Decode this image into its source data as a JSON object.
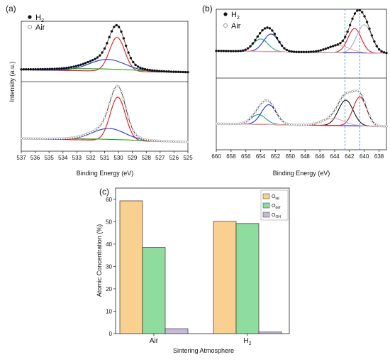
{
  "panels": [
    {
      "label": "(a)",
      "legend": [
        "H",
        "Air"
      ],
      "legend_sub": [
        "2",
        ""
      ]
    },
    {
      "label": "(b)",
      "legend": [
        "H",
        "Air"
      ],
      "legend_sub": [
        "2",
        ""
      ]
    }
  ],
  "chart_data": [
    {
      "id": "a",
      "type": "line",
      "xlabel": "Binding Energy (eV)",
      "ylabel": "Intensity (a.u.)",
      "xlim": [
        537,
        525
      ],
      "xticks": [
        "537",
        "536",
        "535",
        "534",
        "533",
        "532",
        "531",
        "530",
        "529",
        "528",
        "527",
        "526",
        "525"
      ],
      "subplots": [
        {
          "series_label": "H2",
          "peaks": [
            {
              "component": "red",
              "center": 530.1,
              "height": 0.78,
              "width": 0.55
            },
            {
              "component": "blue",
              "center": 530.8,
              "height": 0.27,
              "width": 1.3
            },
            {
              "component": "green",
              "center": 531.5,
              "height": 0.05,
              "width": 3.0
            }
          ]
        },
        {
          "series_label": "Air",
          "peaks": [
            {
              "component": "red",
              "center": 530.05,
              "height": 0.8,
              "width": 0.55
            },
            {
              "component": "blue",
              "center": 530.7,
              "height": 0.22,
              "width": 1.2
            },
            {
              "component": "green",
              "center": 531.5,
              "height": 0.02,
              "width": 3.0
            }
          ]
        }
      ]
    },
    {
      "id": "b",
      "type": "line",
      "xlabel": "Binding Energy (eV)",
      "ylabel": "",
      "xlim": [
        660,
        637
      ],
      "xticks": [
        "660",
        "658",
        "656",
        "654",
        "652",
        "650",
        "648",
        "646",
        "644",
        "642",
        "640",
        "638"
      ],
      "reference_lines": [
        642.6,
        640.6
      ],
      "subplots": [
        {
          "series_label": "H2",
          "peaks": [
            {
              "component": "teal",
              "center": 654.0,
              "height": 0.32,
              "width": 1.0
            },
            {
              "component": "blue",
              "center": 652.6,
              "height": 0.45,
              "width": 1.0
            },
            {
              "component": "red",
              "center": 641.3,
              "height": 0.62,
              "width": 0.9
            },
            {
              "component": "grey",
              "center": 640.0,
              "height": 0.72,
              "width": 1.0
            },
            {
              "component": "pink",
              "center": 643.5,
              "height": 0.18,
              "width": 1.5
            }
          ]
        },
        {
          "series_label": "Air",
          "peaks": [
            {
              "component": "teal",
              "center": 654.3,
              "height": 0.22,
              "width": 1.0
            },
            {
              "component": "blue",
              "center": 652.9,
              "height": 0.45,
              "width": 1.0
            },
            {
              "component": "black",
              "center": 642.5,
              "height": 0.58,
              "width": 1.0
            },
            {
              "component": "red",
              "center": 640.6,
              "height": 0.66,
              "width": 0.9
            },
            {
              "component": "pink",
              "center": 644.2,
              "height": 0.16,
              "width": 1.5
            }
          ]
        }
      ]
    },
    {
      "id": "c",
      "type": "bar",
      "xlabel": "Sintering Atmosphere",
      "ylabel": "Atomic Concentration (%)",
      "ylim": [
        0,
        65
      ],
      "yticks": [
        "0",
        "10",
        "20",
        "30",
        "40",
        "50",
        "60"
      ],
      "categories": [
        "Air",
        "H"
      ],
      "category_sub": [
        "",
        "2"
      ],
      "series": [
        {
          "name": "O",
          "sub": "lat",
          "color": "#f9d08f",
          "values": [
            59.3,
            50.1
          ]
        },
        {
          "name": "O",
          "sub": "def",
          "color": "#8fdc9f",
          "values": [
            38.5,
            49.2
          ]
        },
        {
          "name": "O",
          "sub": "OH",
          "color": "#c8b9db",
          "values": [
            2.2,
            0.7
          ]
        }
      ]
    }
  ]
}
